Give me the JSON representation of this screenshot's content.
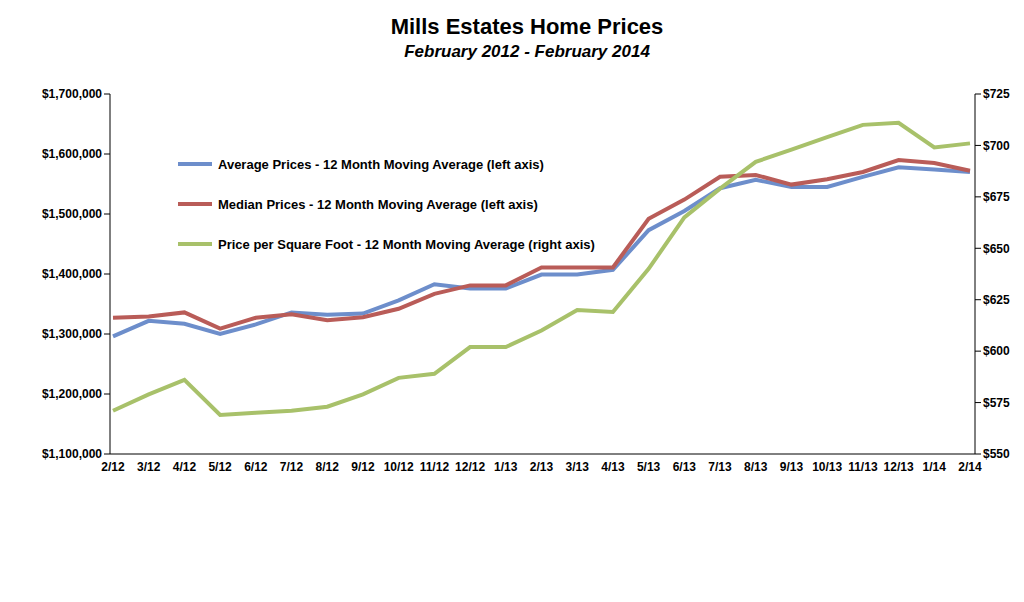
{
  "chart_data": {
    "type": "line",
    "title": "Mills Estates Home Prices",
    "subtitle": "February 2012 - February 2014",
    "categories": [
      "2/12",
      "3/12",
      "4/12",
      "5/12",
      "6/12",
      "7/12",
      "8/12",
      "9/12",
      "10/12",
      "11/12",
      "12/12",
      "1/13",
      "2/13",
      "3/13",
      "4/13",
      "5/13",
      "6/13",
      "7/13",
      "8/13",
      "9/13",
      "10/13",
      "11/13",
      "12/13",
      "1/14",
      "2/14"
    ],
    "series": [
      {
        "name": "Average Prices - 12 Month Moving Average (left axis)",
        "color": "#6d8ecb",
        "values": [
          1296000,
          1322000,
          1317000,
          1300000,
          1316000,
          1336000,
          1332000,
          1334000,
          1356000,
          1383000,
          1376000,
          1376000,
          1399000,
          1399000,
          1407000,
          1473000,
          1505000,
          1543000,
          1557000,
          1545000,
          1545000,
          1562000,
          1578000,
          1574000,
          1570000
        ]
      },
      {
        "name": "Median Prices - 12 Month Moving Average (left axis)",
        "color": "#b95c58",
        "values": [
          1327000,
          1329000,
          1336000,
          1309000,
          1327000,
          1333000,
          1323000,
          1328000,
          1342000,
          1367000,
          1381000,
          1381000,
          1411000,
          1411000,
          1411000,
          1492000,
          1524000,
          1562000,
          1565000,
          1549000,
          1558000,
          1570000,
          1590000,
          1585000,
          1572000
        ]
      },
      {
        "name": "Price per Square Foot - 12 Month Moving Average (right axis)",
        "color": "#a8c16a",
        "axis": "y2",
        "values": [
          571,
          579,
          586,
          569,
          570,
          571,
          573,
          579,
          587,
          589,
          602,
          602,
          610,
          620,
          619,
          640,
          665,
          679,
          692,
          698,
          704,
          710,
          711,
          699,
          701
        ]
      }
    ],
    "ylim": [
      1100000,
      1700000
    ],
    "yticks": [
      {
        "value": 1100000,
        "label": "$1,100,000"
      },
      {
        "value": 1200000,
        "label": "$1,200,000"
      },
      {
        "value": 1300000,
        "label": "$1,300,000"
      },
      {
        "value": 1400000,
        "label": "$1,400,000"
      },
      {
        "value": 1500000,
        "label": "$1,500,000"
      },
      {
        "value": 1600000,
        "label": "$1,600,000"
      },
      {
        "value": 1700000,
        "label": "$1,700,000"
      }
    ],
    "y2lim": [
      550,
      725
    ],
    "y2ticks": [
      {
        "value": 550,
        "label": "$550"
      },
      {
        "value": 575,
        "label": "$575"
      },
      {
        "value": 600,
        "label": "$600"
      },
      {
        "value": 625,
        "label": "$625"
      },
      {
        "value": 650,
        "label": "$650"
      },
      {
        "value": 675,
        "label": "$675"
      },
      {
        "value": 700,
        "label": "$700"
      },
      {
        "value": 725,
        "label": "$725"
      }
    ],
    "grid": false,
    "legend": "upper left"
  }
}
